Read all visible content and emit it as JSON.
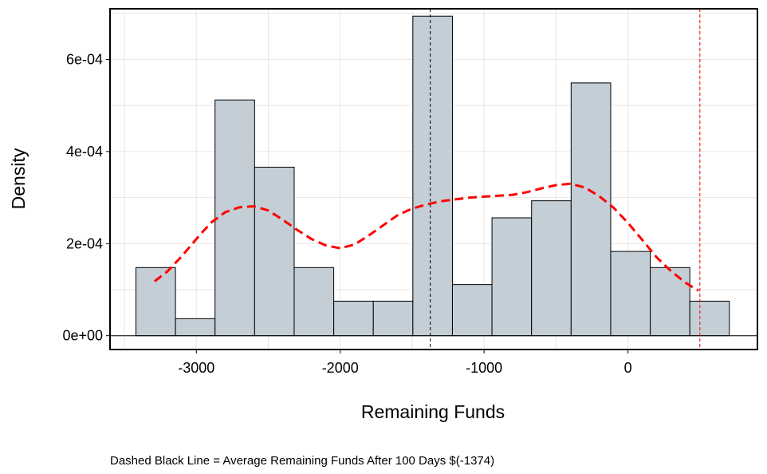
{
  "chart_data": {
    "type": "bar",
    "xlabel": "Remaining Funds",
    "ylabel": "Density",
    "caption": "Dashed Black Line = Average Remaining Funds After 100 Days $(-1374)",
    "xlim": [
      -3600,
      900
    ],
    "ylim": [
      -3e-05,
      0.00071
    ],
    "x_ticks": [
      {
        "value": -3000,
        "label": "-3000"
      },
      {
        "value": -2000,
        "label": "-2000"
      },
      {
        "value": -1000,
        "label": "-1000"
      },
      {
        "value": 0,
        "label": "0"
      }
    ],
    "y_ticks": [
      {
        "value": 0,
        "label": "0e+00"
      },
      {
        "value": 0.0002,
        "label": "2e-04"
      },
      {
        "value": 0.0004,
        "label": "4e-04"
      },
      {
        "value": 0.0006,
        "label": "6e-04"
      }
    ],
    "bins": [
      {
        "x0": -3420,
        "x1": -3145,
        "density": 0.000148
      },
      {
        "x0": -3145,
        "x1": -2870,
        "density": 3.7e-05
      },
      {
        "x0": -2870,
        "x1": -2595,
        "density": 0.000512
      },
      {
        "x0": -2595,
        "x1": -2320,
        "density": 0.000366
      },
      {
        "x0": -2320,
        "x1": -2045,
        "density": 0.000148
      },
      {
        "x0": -2045,
        "x1": -1770,
        "density": 7.5e-05
      },
      {
        "x0": -1770,
        "x1": -1495,
        "density": 7.5e-05
      },
      {
        "x0": -1495,
        "x1": -1220,
        "density": 0.000694
      },
      {
        "x0": -1220,
        "x1": -945,
        "density": 0.000111
      },
      {
        "x0": -945,
        "x1": -670,
        "density": 0.000256
      },
      {
        "x0": -670,
        "x1": -395,
        "density": 0.000293
      },
      {
        "x0": -395,
        "x1": -120,
        "density": 0.000549
      },
      {
        "x0": -120,
        "x1": 155,
        "density": 0.000183
      },
      {
        "x0": 155,
        "x1": 430,
        "density": 0.000148
      },
      {
        "x0": 430,
        "x1": 705,
        "density": 7.5e-05
      }
    ],
    "density_curve": {
      "x": [
        -3290,
        -3200,
        -3100,
        -3000,
        -2900,
        -2800,
        -2700,
        -2600,
        -2500,
        -2400,
        -2300,
        -2200,
        -2100,
        -2000,
        -1900,
        -1800,
        -1700,
        -1600,
        -1500,
        -1400,
        -1300,
        -1200,
        -1100,
        -1000,
        -900,
        -800,
        -700,
        -600,
        -500,
        -400,
        -300,
        -200,
        -100,
        0,
        100,
        200,
        300,
        400,
        490
      ],
      "y": [
        0.000118,
        0.00014,
        0.000173,
        0.00021,
        0.000245,
        0.000268,
        0.000279,
        0.000281,
        0.000272,
        0.000252,
        0.00023,
        0.00021,
        0.000196,
        0.00019,
        0.000198,
        0.000218,
        0.00024,
        0.000262,
        0.000276,
        0.000285,
        0.000292,
        0.000296,
        0.0003,
        0.000302,
        0.000304,
        0.000306,
        0.000312,
        0.00032,
        0.000327,
        0.00033,
        0.000322,
        0.000303,
        0.000278,
        0.000245,
        0.000208,
        0.00017,
        0.00014,
        0.000115,
        9.8e-05
      ],
      "color": "#ff0000"
    },
    "mean_line": {
      "x": -1374,
      "color": "#000000"
    },
    "reference_line": {
      "x": 500,
      "color": "#ff0000"
    },
    "bar_fill": "#c4ced6",
    "grid": true
  }
}
